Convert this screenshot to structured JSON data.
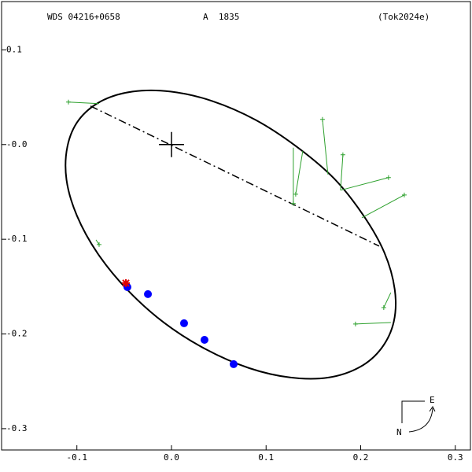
{
  "chart_data": {
    "type": "scatter",
    "header": {
      "left": "WDS 04216+0658",
      "center": "A  1835",
      "right": "(Tok2024e)"
    },
    "xlim": [
      -0.1796,
      0.316
    ],
    "ylim": [
      -0.3225,
      0.151
    ],
    "xticks": [
      -0.1,
      {
        "value": 0,
        "label": "0.0"
      },
      0.1,
      0.2,
      0.3
    ],
    "yticks": [
      0.1,
      {
        "value": 0,
        "label": "-0.0"
      },
      -0.1,
      -0.2,
      -0.3
    ],
    "orbit": {
      "color": "#000000",
      "x": [
        0.222,
        0.199,
        0.166,
        0.126,
        0.082,
        0.036,
        -0.008,
        -0.047,
        -0.078,
        -0.1,
        -0.111,
        -0.11,
        -0.098,
        -0.074,
        -0.041,
        -0.001,
        0.043,
        0.089,
        0.132,
        0.172,
        0.203,
        0.225,
        0.236,
        0.235
      ],
      "y": [
        -0.215,
        -0.235,
        -0.246,
        -0.246,
        -0.236,
        -0.216,
        -0.188,
        -0.153,
        -0.115,
        -0.075,
        -0.037,
        -0.002,
        0.026,
        0.046,
        0.056,
        0.056,
        0.046,
        0.026,
        -0.002,
        -0.036,
        -0.075,
        -0.114,
        -0.153,
        -0.187
      ]
    },
    "node_line": {
      "color": "#000000",
      "x": [
        -0.0856,
        0.2195
      ],
      "y": [
        0.0407,
        -0.1072
      ]
    },
    "primary": {
      "x": 0,
      "y": 0,
      "color": "#000000"
    },
    "series": [
      {
        "color": "#2ca02c",
        "marker": "plus",
        "x": [
          -0.1089,
          -0.0765,
          0.1596,
          0.1812,
          0.2294,
          0.2461,
          0.1313,
          0.1288,
          0.2244,
          0.1945
        ],
        "y": [
          0.0449,
          -0.1056,
          0.0266,
          -0.0108,
          -0.0349,
          -0.0532,
          -0.0524,
          -0.0623,
          -0.1721,
          -0.1895
        ],
        "rx": [
          -0.0765,
          -0.0798,
          0.1654,
          0.1787,
          0.1787,
          0.2012,
          0.1388,
          0.1288,
          0.2319,
          0.2319
        ],
        "ry": [
          0.0432,
          -0.1006,
          -0.0316,
          -0.0482,
          -0.0482,
          -0.0773,
          -0.0067,
          -0.0033,
          -0.1563,
          -0.1879
        ]
      },
      {
        "color": "#0000ff",
        "marker": "circle",
        "x": [
          -0.0466,
          -0.0249,
          0.0133,
          0.0349,
          0.0657
        ],
        "y": [
          -0.1505,
          -0.1579,
          -0.1887,
          -0.2062,
          -0.2319
        ]
      },
      {
        "color": "#e00000",
        "marker": "star",
        "x": [
          -0.0482
        ],
        "y": [
          -0.1463
        ]
      }
    ],
    "compass": {
      "east": "E",
      "north": "N"
    }
  }
}
